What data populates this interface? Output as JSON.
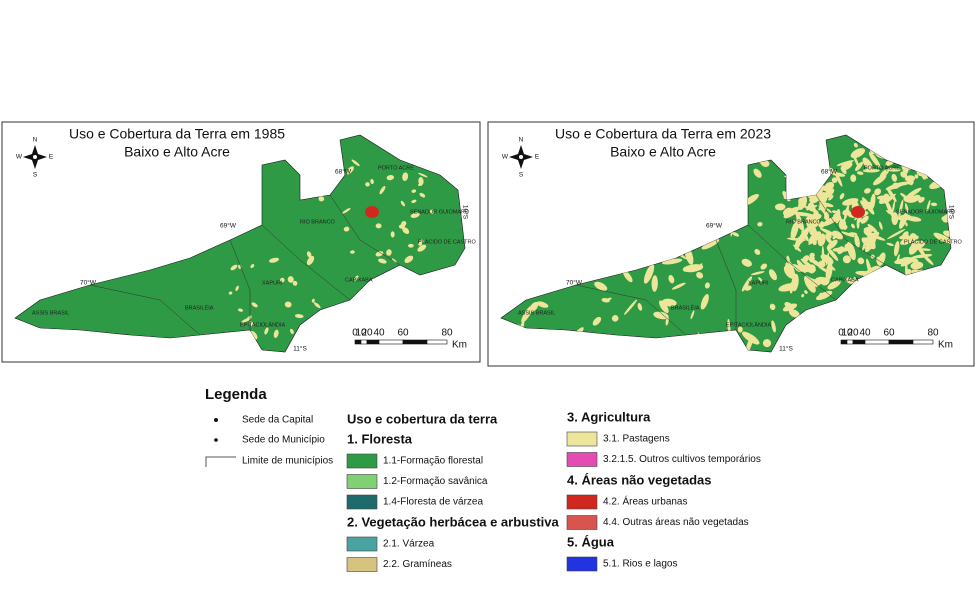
{
  "maps": [
    {
      "title": "Uso e Cobertura da Terra em 1985",
      "subtitle": "Baixo e Alto Acre",
      "compass": [
        "N",
        "S",
        "E",
        "W"
      ],
      "coordinates": [
        "70°W",
        "69°W",
        "68°W",
        "10°S",
        "11°S"
      ],
      "places": [
        "ASSIS BRASIL",
        "BRASILÉIA",
        "EPITACIOLÂNDIA",
        "XAPURI",
        "CAPIXABA",
        "RIO BRANCO",
        "PORTO ACRE",
        "SENADOR GUIOMARD",
        "PLÁCIDO DE CASTRO"
      ],
      "scale": {
        "ticks": [
          "0",
          "10",
          "20",
          "40",
          "60",
          "80"
        ],
        "unit": "Km"
      }
    },
    {
      "title": "Uso e Cobertura da Terra em 2023",
      "subtitle": "Baixo e Alto Acre",
      "compass": [
        "N",
        "S",
        "E",
        "W"
      ],
      "coordinates": [
        "70°W",
        "69°W",
        "68°W",
        "10°S",
        "11°S"
      ],
      "places": [
        "ASSIS BRASIL",
        "BRASILÉIA",
        "EPITACIOLÂNDIA",
        "XAPURI",
        "CAPIXABA",
        "RIO BRANCO",
        "PORTO ACRE",
        "SENADOR GUIOMARD",
        "PLÁCIDO DE CASTRO"
      ],
      "scale": {
        "ticks": [
          "0",
          "10",
          "20",
          "40",
          "60",
          "80"
        ],
        "unit": "Km"
      }
    }
  ],
  "legend": {
    "title": "Legenda",
    "reference": [
      "Sede da Capital",
      "Sede do Município",
      "Limite de municípios"
    ],
    "heading": "Uso e cobertura da terra",
    "groups": [
      {
        "title": "1. Floresta",
        "items": [
          {
            "label": "1.1-Formação florestal",
            "color": "#2e9a45"
          },
          {
            "label": "1.2-Formação savânica",
            "color": "#7fd173"
          },
          {
            "label": "1.4-Floresta de várzea",
            "color": "#1d6b6b"
          }
        ]
      },
      {
        "title": "2. Vegetação herbácea e arbustiva",
        "items": [
          {
            "label": "2.1. Várzea",
            "color": "#4aa3a0"
          },
          {
            "label": "2.2. Gramíneas",
            "color": "#d6c37f"
          }
        ]
      },
      {
        "title": "3. Agricultura",
        "items": [
          {
            "label": "3.1. Pastagens",
            "color": "#ede59a"
          },
          {
            "label": "3.2.1.5. Outros cultivos temporários",
            "color": "#e64bb4"
          }
        ]
      },
      {
        "title": "4. Áreas não vegetadas",
        "items": [
          {
            "label": "4.2. Áreas urbanas",
            "color": "#d0281f"
          },
          {
            "label": "4.4. Outras áreas não vegetadas",
            "color": "#d9534f"
          }
        ]
      },
      {
        "title": "5. Água",
        "items": [
          {
            "label": "5.1. Rios e lagos",
            "color": "#2233e0"
          }
        ]
      }
    ]
  }
}
